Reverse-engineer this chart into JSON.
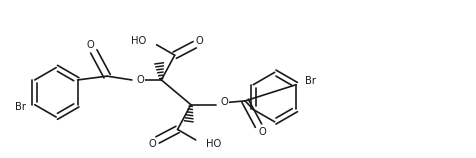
{
  "figsize": [
    4.76,
    1.58
  ],
  "dpi": 100,
  "bg": "#ffffff",
  "lc": "#1a1a1a",
  "lw": 1.2,
  "fs": 7.2,
  "xlim": [
    0,
    10
  ],
  "ylim": [
    0,
    3.32
  ]
}
